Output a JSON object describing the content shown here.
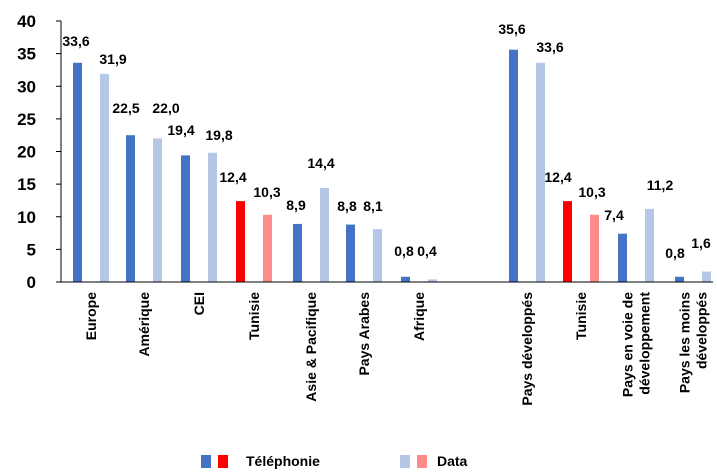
{
  "chart_data": {
    "type": "bar",
    "ylim": [
      0,
      40
    ],
    "yticks": [
      "0",
      "5",
      "10",
      "15",
      "20",
      "25",
      "30",
      "35",
      "40"
    ],
    "grid": false,
    "legend_position": "bottom",
    "colors": {
      "telephonie": "#4472C4",
      "telephonie_highlight": "#FF0000",
      "data": "#B4C7E7",
      "data_highlight": "#FF8B8B",
      "axis": "#000000"
    },
    "categories": [
      "Europe",
      "Amérique",
      "CEI",
      "Tunisie",
      "Asie & Pacifique",
      "Pays Arabes",
      "Afrique",
      "Pays développés",
      "Tunisie",
      "Pays en voie de développement",
      "Pays les moins développés"
    ],
    "category_lines": [
      [
        "Europe"
      ],
      [
        "Amérique"
      ],
      [
        "CEI"
      ],
      [
        "Tunisie"
      ],
      [
        "Asie & Pacifique"
      ],
      [
        "Pays Arabes"
      ],
      [
        "Afrique"
      ],
      [
        "Pays développés"
      ],
      [
        "Tunisie"
      ],
      [
        "Pays en voie de",
        "développement"
      ],
      [
        "Pays les moins",
        "développés"
      ]
    ],
    "highlight_indices": [
      3,
      8
    ],
    "series": [
      {
        "name": "Téléphonie",
        "values": [
          33.6,
          22.5,
          19.4,
          12.4,
          8.9,
          8.8,
          0.8,
          35.6,
          12.4,
          7.4,
          0.8
        ],
        "labels": [
          "33,6",
          "22,5",
          "19,4",
          "12,4",
          "8,9",
          "8,8",
          "0,8",
          "35,6",
          "12,4",
          "7,4",
          "0,8"
        ]
      },
      {
        "name": "Data",
        "values": [
          31.9,
          22.0,
          19.8,
          10.3,
          14.4,
          8.1,
          0.4,
          33.6,
          10.3,
          11.2,
          1.6
        ],
        "labels": [
          "31,9",
          "22,0",
          "19,8",
          "10,3",
          "14,4",
          "8,1",
          "0,4",
          "33,6",
          "10,3",
          "11,2",
          "1,6"
        ]
      }
    ]
  }
}
